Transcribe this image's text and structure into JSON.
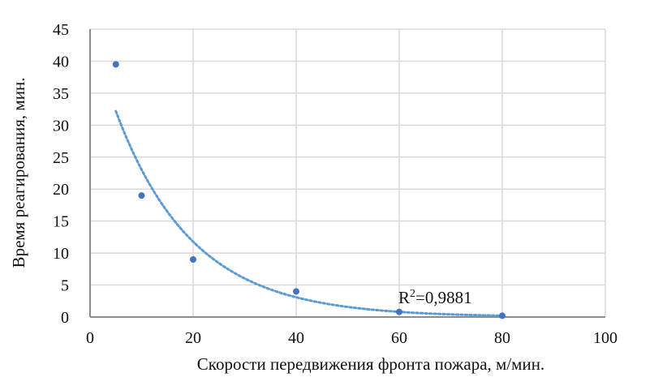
{
  "chart_data": {
    "type": "scatter",
    "xlabel": "Скорости передвижения фронта пожара, м/мин.",
    "ylabel": "Время реагирования, мин.",
    "xlim": [
      0,
      100
    ],
    "ylim": [
      0,
      45
    ],
    "x_ticks": [
      "0",
      "20",
      "40",
      "60",
      "80",
      "100"
    ],
    "y_ticks": [
      "0",
      "5",
      "10",
      "15",
      "20",
      "25",
      "30",
      "35",
      "40",
      "45"
    ],
    "grid": true,
    "series": [
      {
        "points": [
          {
            "x": 5,
            "y": 39.5
          },
          {
            "x": 10,
            "y": 19
          },
          {
            "x": 20,
            "y": 9
          },
          {
            "x": 40,
            "y": 4
          },
          {
            "x": 60,
            "y": 0.8
          },
          {
            "x": 80,
            "y": 0.2
          }
        ],
        "color": "#4472C4"
      }
    ],
    "trendline": {
      "type": "exponential",
      "a": 45,
      "b": -0.067,
      "x_start": 5,
      "x_end": 80,
      "color": "#5B9BD5",
      "label_prefix": "R",
      "label_sup": "2",
      "label_value": "=0,9881"
    }
  }
}
